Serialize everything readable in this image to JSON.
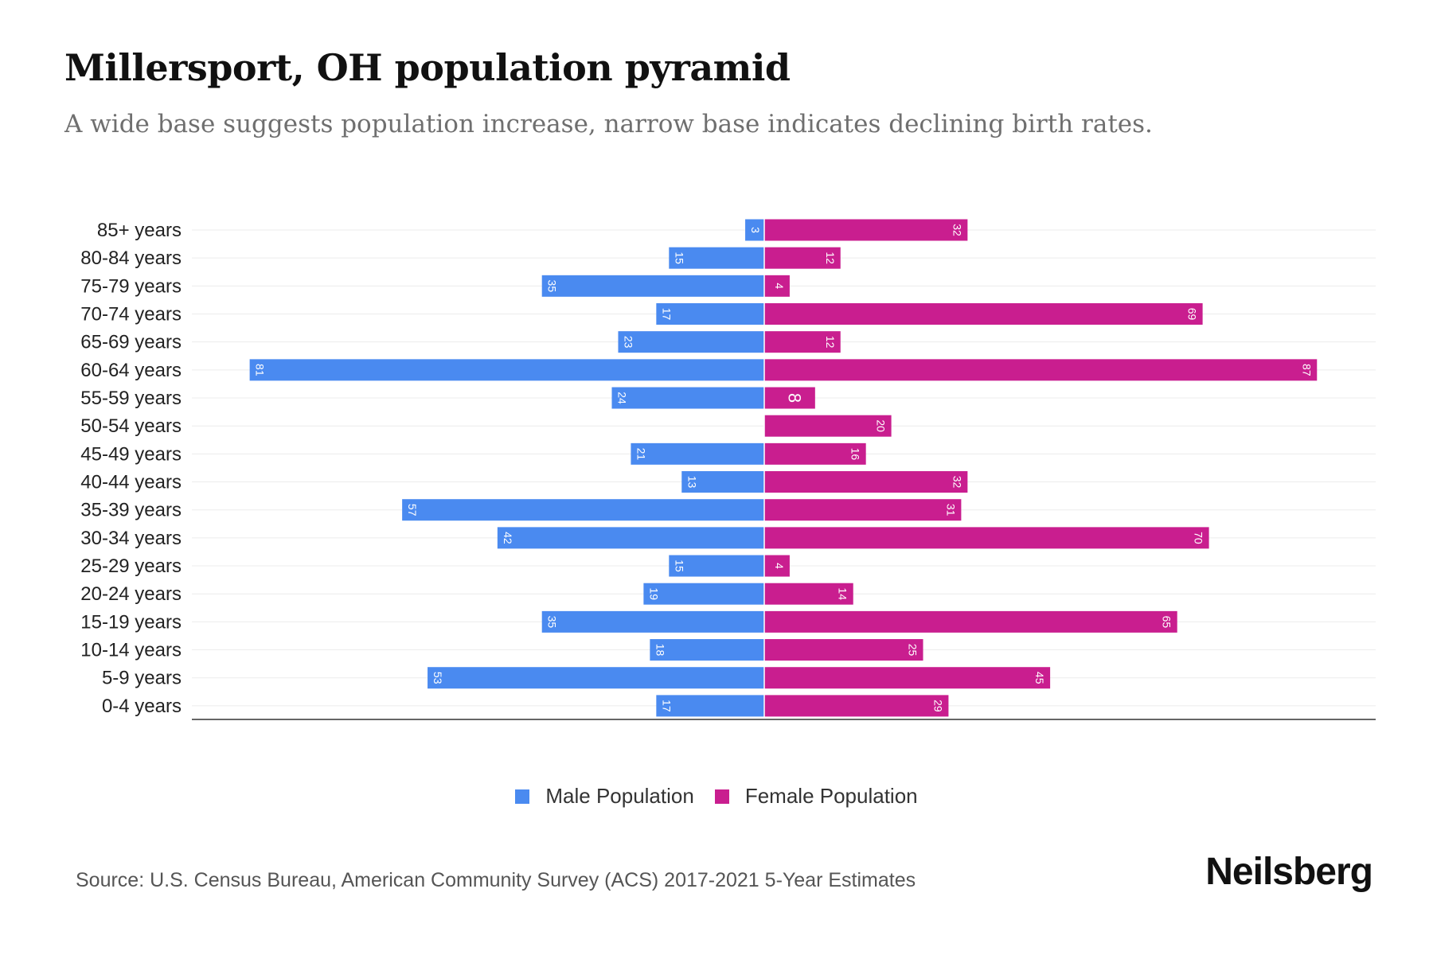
{
  "title": "Millersport, OH population pyramid",
  "subtitle": "A wide base suggests population increase, narrow base indicates declining birth rates.",
  "source": "Source: U.S. Census Bureau, American Community Survey (ACS) 2017-2021 5-Year Estimates",
  "brand": "Neilsberg",
  "colors": {
    "male": "#4a8af0",
    "female": "#c91e8f"
  },
  "legend": {
    "male": "Male Population",
    "female": "Female Population"
  },
  "chart_data": {
    "type": "bar",
    "orientation": "horizontal-diverging",
    "title": "Millersport, OH population pyramid",
    "categories": [
      "85+ years",
      "80-84 years",
      "75-79 years",
      "70-74 years",
      "65-69 years",
      "60-64 years",
      "55-59 years",
      "50-54 years",
      "45-49 years",
      "40-44 years",
      "35-39 years",
      "30-34 years",
      "25-29 years",
      "20-24 years",
      "15-19 years",
      "10-14 years",
      "5-9 years",
      "0-4 years"
    ],
    "series": [
      {
        "name": "Male Population",
        "values": [
          3,
          15,
          35,
          17,
          23,
          81,
          24,
          0,
          21,
          13,
          57,
          42,
          15,
          19,
          35,
          18,
          53,
          17
        ]
      },
      {
        "name": "Female Population",
        "values": [
          32,
          12,
          4,
          69,
          12,
          87,
          8,
          20,
          16,
          32,
          31,
          70,
          4,
          14,
          65,
          25,
          45,
          29
        ]
      }
    ],
    "xlim": [
      -90,
      97
    ],
    "legend_position": "bottom-center"
  }
}
